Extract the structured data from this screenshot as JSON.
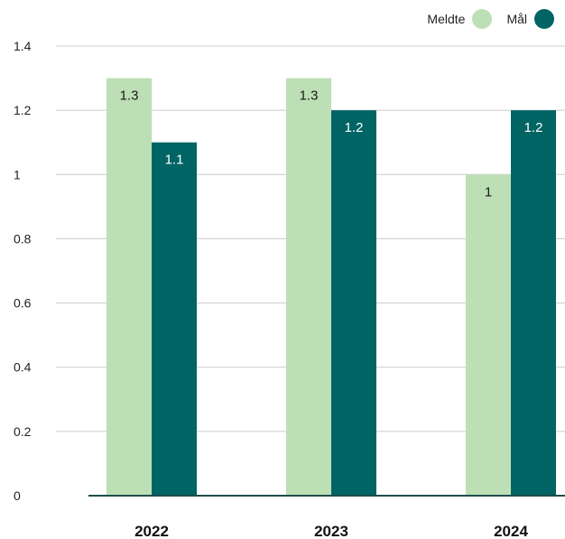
{
  "chart_data": {
    "type": "bar",
    "title": "",
    "xlabel": "",
    "ylabel": "",
    "categories": [
      "2022",
      "2023",
      "2024"
    ],
    "series": [
      {
        "name": "Meldte",
        "values": [
          1.3,
          1.3,
          1
        ],
        "labels": [
          "1.3",
          "1.3",
          "1"
        ],
        "color": "#bddfb5"
      },
      {
        "name": "Mål",
        "values": [
          1.1,
          1.2,
          1.2
        ],
        "labels": [
          "1.1",
          "1.2",
          "1.2"
        ],
        "color": "#006464"
      }
    ],
    "ylim": [
      0,
      1.4
    ],
    "yticks": [
      0,
      0.2,
      0.4,
      0.6,
      0.8,
      1,
      1.2,
      1.4
    ],
    "ytick_labels": [
      "0",
      "0.2",
      "0.4",
      "0.6",
      "0.8",
      "1",
      "1.2",
      "1.4"
    ],
    "grid": true,
    "legend_position": "top-right",
    "colors": {
      "gridline": "#cccccc",
      "baseline": "#1d4e4e",
      "label_dark": "#1a1a1a",
      "label_light": "#ffffff"
    }
  }
}
